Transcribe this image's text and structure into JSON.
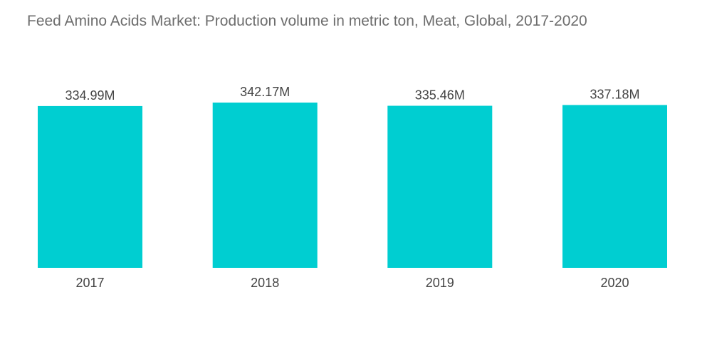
{
  "chart_data": {
    "type": "bar",
    "title": "Feed Amino Acids Market: Production volume in metric ton, Meat, Global, 2017-2020",
    "categories": [
      "2017",
      "2018",
      "2019",
      "2020"
    ],
    "values": [
      334.99,
      342.17,
      335.46,
      337.18
    ],
    "value_labels": [
      "334.99M",
      "342.17M",
      "335.46M",
      "337.18M"
    ],
    "unit": "M",
    "xlabel": "",
    "ylabel": "",
    "ylim": [
      0,
      342.17
    ],
    "grid": false,
    "legend": "none",
    "bar_color": "#00ced1"
  }
}
